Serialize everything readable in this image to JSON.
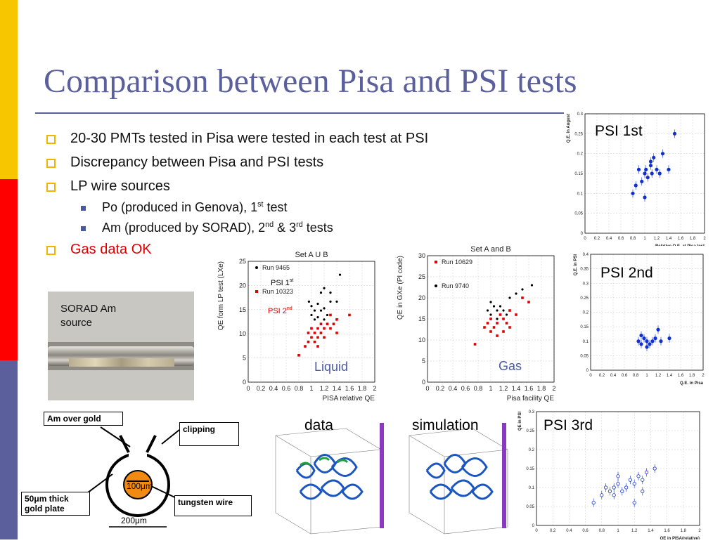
{
  "slide": {
    "title": "Comparison between Pisa and PSI tests",
    "bullets": [
      {
        "text": "20-30 PMTs tested in Pisa were tested in each test at PSI"
      },
      {
        "text": "Discrepancy between Pisa and PSI tests"
      },
      {
        "text": "LP wire sources"
      },
      {
        "text": "Gas data OK"
      }
    ],
    "subbullets": [
      {
        "pre": "Po (produced in Genova), 1",
        "sup": "st",
        "post": " test"
      },
      {
        "pre": "Am (produced by SORAD), 2",
        "sup": "nd",
        "mid": " & 3",
        "sup2": "rd",
        "post": " tests"
      }
    ],
    "colors": {
      "title": "#5b5f9c",
      "bullet_square": "#f2b400",
      "gas_ok": "#e00000",
      "bar_yellow": "#f7c600",
      "bar_red": "#ff0000",
      "bar_blue": "#5b5f9c"
    }
  },
  "sorad": {
    "caption_line1": "SORAD Am",
    "caption_line2": "source"
  },
  "diagram": {
    "am_over_gold": "Am over gold",
    "clipping": "clipping",
    "gold_plate_line1": "50μm thick",
    "gold_plate_line2": "gold plate",
    "tungsten": "tungsten wire",
    "inner": "100μm",
    "outer": "200μm"
  },
  "labels": {
    "psi1": "PSI 1st",
    "psi2": "PSI 2nd",
    "psi3": "PSI 3rd",
    "data": "data",
    "simulation": "simulation",
    "liquid": "Liquid",
    "gas": "Gas"
  },
  "chart_data": [
    {
      "type": "scatter",
      "title": "Set A U B",
      "xlabel": "PISA relative QE",
      "ylabel": "QE form LP test (LXe)",
      "xlim": [
        0,
        2
      ],
      "ylim": [
        0,
        27
      ],
      "xticks": [
        "0",
        "0.2",
        "0.4",
        "0.6",
        "0.8",
        "1",
        "1.2",
        "1.4",
        "1.6",
        "1.8",
        "2"
      ],
      "yticks": [
        "0",
        "5",
        "10",
        "15",
        "20",
        "25"
      ],
      "legend": [
        "Run 9465",
        "Run 10323"
      ],
      "annotations": {
        "psi1_pre": "PSI 1",
        "psi1_sup": "st",
        "psi2_pre": "PSI 2",
        "psi2_sup": "nd"
      },
      "series": [
        {
          "name": "Run 9465",
          "color": "#000000",
          "points": [
            [
              0.96,
              18
            ],
            [
              1.0,
              17
            ],
            [
              1.05,
              16
            ],
            [
              1.1,
              17.5
            ],
            [
              1.15,
              16
            ],
            [
              1.2,
              16.5
            ],
            [
              1.25,
              15
            ],
            [
              1.0,
              15
            ],
            [
              1.05,
              14
            ],
            [
              1.1,
              14.5
            ],
            [
              1.2,
              14
            ],
            [
              1.3,
              18
            ],
            [
              1.4,
              18
            ],
            [
              1.15,
              20
            ],
            [
              1.2,
              21
            ],
            [
              1.3,
              20
            ],
            [
              1.45,
              24
            ]
          ]
        },
        {
          "name": "Run 10323",
          "color": "#e00000",
          "points": [
            [
              0.8,
              6
            ],
            [
              0.9,
              8
            ],
            [
              0.95,
              9
            ],
            [
              1.0,
              10
            ],
            [
              1.05,
              9
            ],
            [
              1.05,
              11
            ],
            [
              1.1,
              10
            ],
            [
              1.1,
              12
            ],
            [
              1.15,
              11
            ],
            [
              1.2,
              12
            ],
            [
              1.2,
              10
            ],
            [
              1.25,
              13
            ],
            [
              1.3,
              12
            ],
            [
              1.35,
              13
            ],
            [
              1.4,
              14
            ],
            [
              1.0,
              12
            ],
            [
              0.95,
              11
            ],
            [
              1.15,
              13
            ],
            [
              1.3,
              15
            ],
            [
              1.6,
              15
            ],
            [
              1.4,
              11
            ],
            [
              1.1,
              8
            ]
          ]
        }
      ]
    },
    {
      "type": "scatter",
      "title": "Set A and B",
      "xlabel": "Pisa facility QE",
      "ylabel": "QE in GXe (PI code)",
      "xlim": [
        0,
        2
      ],
      "ylim": [
        0,
        30
      ],
      "xticks": [
        "0",
        "0.2",
        "0.4",
        "0.6",
        "0.8",
        "1",
        "1.2",
        "1.4",
        "1.6",
        "1.8",
        "2"
      ],
      "yticks": [
        "0",
        "5",
        "10",
        "15",
        "20",
        "25",
        "30"
      ],
      "legend": [
        "Run 10629",
        "Run 9740"
      ],
      "series": [
        {
          "name": "Run 10629",
          "color": "#e00000",
          "points": [
            [
              0.9,
              13
            ],
            [
              0.95,
              14
            ],
            [
              1.0,
              15
            ],
            [
              1.05,
              13
            ],
            [
              1.1,
              14
            ],
            [
              1.15,
              16
            ],
            [
              1.2,
              15
            ],
            [
              1.25,
              14
            ],
            [
              1.3,
              13
            ],
            [
              1.0,
              12
            ],
            [
              1.1,
              11
            ],
            [
              1.2,
              12
            ],
            [
              1.3,
              17
            ],
            [
              1.4,
              16
            ],
            [
              0.75,
              9
            ],
            [
              1.5,
              20
            ],
            [
              1.6,
              19
            ]
          ]
        },
        {
          "name": "Run 9740",
          "color": "#000000",
          "points": [
            [
              0.95,
              17
            ],
            [
              1.0,
              16
            ],
            [
              1.05,
              18
            ],
            [
              1.1,
              17
            ],
            [
              1.15,
              18
            ],
            [
              1.2,
              17
            ],
            [
              1.25,
              16
            ],
            [
              1.3,
              20
            ],
            [
              1.4,
              21
            ],
            [
              1.5,
              22
            ],
            [
              1.65,
              23
            ],
            [
              1.0,
              19
            ],
            [
              1.1,
              15
            ]
          ]
        }
      ]
    },
    {
      "type": "scatter",
      "title": "",
      "xlabel": "Relative Q.E. at Pisa test",
      "ylabel": "Q.E. in August",
      "xlim": [
        0,
        2
      ],
      "ylim": [
        0,
        0.3
      ],
      "xticks": [
        "0",
        "0.2",
        "0.4",
        "0.6",
        "0.8",
        "1",
        "1.2",
        "1.4",
        "1.6",
        "1.8",
        "2"
      ],
      "yticks": [
        "0",
        "0.05",
        "0.1",
        "0.15",
        "0.2",
        "0.25",
        "0.3"
      ],
      "series": [
        {
          "name": "",
          "color": "#1030d0",
          "points": [
            [
              0.8,
              0.1
            ],
            [
              0.85,
              0.12
            ],
            [
              0.9,
              0.16
            ],
            [
              0.95,
              0.13
            ],
            [
              1.0,
              0.15
            ],
            [
              1.02,
              0.16
            ],
            [
              1.05,
              0.14
            ],
            [
              1.1,
              0.17
            ],
            [
              1.12,
              0.15
            ],
            [
              1.15,
              0.19
            ],
            [
              1.2,
              0.16
            ],
            [
              1.25,
              0.15
            ],
            [
              1.3,
              0.2
            ],
            [
              1.4,
              0.16
            ],
            [
              1.5,
              0.25
            ],
            [
              1.0,
              0.09
            ],
            [
              1.1,
              0.18
            ]
          ]
        }
      ]
    },
    {
      "type": "scatter",
      "title": "",
      "xlabel": "Q.E. in Pisa",
      "ylabel": "Q.E. in PSI",
      "xlim": [
        0,
        2
      ],
      "ylim": [
        0,
        0.4
      ],
      "xticks": [
        "0",
        "0.2",
        "0.4",
        "0.6",
        "0.8",
        "1",
        "1.2",
        "1.4",
        "1.6",
        "1.8",
        "2"
      ],
      "yticks": [
        "0",
        "0.05",
        "0.1",
        "0.15",
        "0.2",
        "0.25",
        "0.3",
        "0.35",
        "0.4"
      ],
      "series": [
        {
          "name": "",
          "color": "#1030d0",
          "points": [
            [
              0.85,
              0.1
            ],
            [
              0.9,
              0.09
            ],
            [
              0.95,
              0.11
            ],
            [
              1.0,
              0.1
            ],
            [
              1.05,
              0.09
            ],
            [
              1.1,
              0.1
            ],
            [
              1.15,
              0.11
            ],
            [
              1.2,
              0.14
            ],
            [
              1.25,
              0.1
            ],
            [
              1.4,
              0.11
            ],
            [
              0.9,
              0.12
            ],
            [
              1.0,
              0.08
            ]
          ]
        }
      ]
    },
    {
      "type": "scatter",
      "title": "",
      "xlabel": "QE in PISA(relative)",
      "ylabel": "QE in PSI",
      "xlim": [
        0,
        2
      ],
      "ylim": [
        0,
        0.3
      ],
      "xticks": [
        "0",
        "0.2",
        "0.4",
        "0.6",
        "0.8",
        "1",
        "1.2",
        "1.4",
        "1.6",
        "1.8",
        "2"
      ],
      "yticks": [
        "0",
        "0.05",
        "0.1",
        "0.15",
        "0.2",
        "0.25",
        "0.3"
      ],
      "series": [
        {
          "name": "",
          "color": "#1030d0",
          "points": [
            [
              0.7,
              0.06
            ],
            [
              0.8,
              0.08
            ],
            [
              0.85,
              0.1
            ],
            [
              0.9,
              0.09
            ],
            [
              0.95,
              0.1
            ],
            [
              1.0,
              0.11
            ],
            [
              1.05,
              0.09
            ],
            [
              1.1,
              0.1
            ],
            [
              1.15,
              0.12
            ],
            [
              1.2,
              0.11
            ],
            [
              1.25,
              0.13
            ],
            [
              1.3,
              0.12
            ],
            [
              1.35,
              0.14
            ],
            [
              1.45,
              0.15
            ],
            [
              1.0,
              0.13
            ],
            [
              1.2,
              0.06
            ],
            [
              0.95,
              0.08
            ],
            [
              1.3,
              0.09
            ]
          ]
        }
      ]
    }
  ]
}
